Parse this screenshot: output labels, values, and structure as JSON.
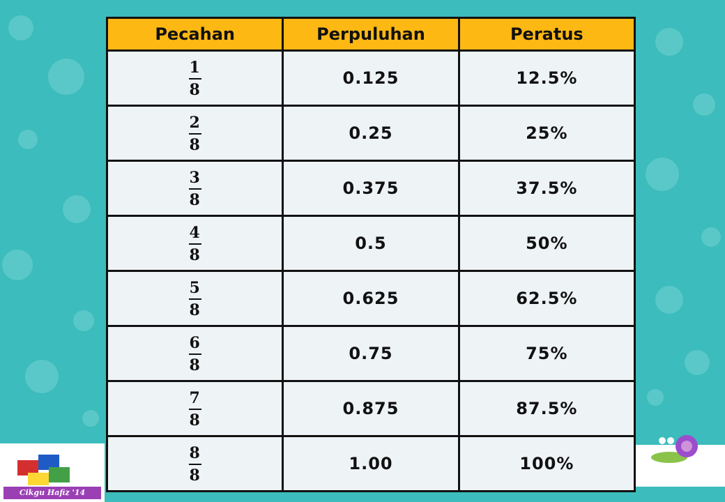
{
  "table": {
    "header": [
      "Pecahan",
      "Perpuluhan",
      "Peratus"
    ],
    "rows": [
      {
        "numerator": "1",
        "denominator": "8",
        "decimal": "0.125",
        "percent": "12.5%"
      },
      {
        "numerator": "2",
        "denominator": "8",
        "decimal": "0.25",
        "percent": "25%"
      },
      {
        "numerator": "3",
        "denominator": "8",
        "decimal": "0.375",
        "percent": "37.5%"
      },
      {
        "numerator": "4",
        "denominator": "8",
        "decimal": "0.5",
        "percent": "50%"
      },
      {
        "numerator": "5",
        "denominator": "8",
        "decimal": "0.625",
        "percent": "62.5%"
      },
      {
        "numerator": "6",
        "denominator": "8",
        "decimal": "0.75",
        "percent": "75%"
      },
      {
        "numerator": "7",
        "denominator": "8",
        "decimal": "0.875",
        "percent": "87.5%"
      },
      {
        "numerator": "8",
        "denominator": "8",
        "decimal": "1.00",
        "percent": "100%"
      }
    ]
  },
  "watermark": "Cikgu Hafiz '14"
}
